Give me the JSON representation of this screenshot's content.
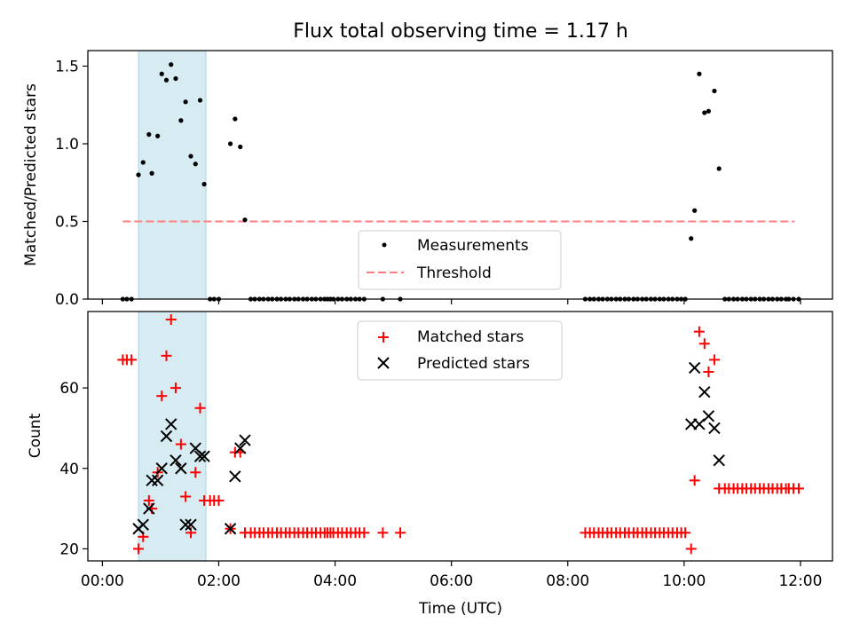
{
  "figure_title": "Flux total observing time = 1.17 h",
  "chart_data": [
    {
      "type": "scatter",
      "ylabel": "Matched/Predicted stars",
      "xlabel": "",
      "xlim": [
        -0.25,
        12.55
      ],
      "ylim": [
        0,
        1.6
      ],
      "yticks": [
        0.0,
        0.5,
        1.0,
        1.5
      ],
      "ytick_labels": [
        "0.0",
        "0.5",
        "1.0",
        "1.5"
      ],
      "highlight_span": [
        0.62,
        1.78
      ],
      "threshold": {
        "label": "Threshold",
        "value": 0.5,
        "x_range": [
          0.35,
          11.9
        ],
        "color": "#ff7f7f"
      },
      "series": [
        {
          "name": "Measurements",
          "color": "#000000",
          "marker": "dot",
          "x": [
            0.35,
            0.42,
            0.5,
            0.62,
            0.7,
            0.8,
            0.85,
            0.95,
            1.02,
            1.1,
            1.18,
            1.26,
            1.35,
            1.43,
            1.52,
            1.6,
            1.68,
            1.75,
            1.85,
            1.92,
            2.0,
            2.2,
            2.28,
            2.37,
            2.45,
            2.55,
            2.62,
            2.7,
            2.77,
            2.85,
            2.92,
            3.0,
            3.07,
            3.15,
            3.22,
            3.3,
            3.37,
            3.45,
            3.52,
            3.6,
            3.67,
            3.75,
            3.82,
            3.87,
            3.92,
            3.97,
            4.05,
            4.12,
            4.2,
            4.27,
            4.35,
            4.42,
            4.5,
            4.82,
            5.12,
            8.3,
            8.38,
            8.45,
            8.53,
            8.6,
            8.68,
            8.75,
            8.83,
            8.9,
            8.98,
            9.05,
            9.13,
            9.2,
            9.28,
            9.35,
            9.43,
            9.5,
            9.58,
            9.65,
            9.73,
            9.8,
            9.88,
            9.95,
            10.02,
            10.12,
            10.18,
            10.26,
            10.35,
            10.42,
            10.52,
            10.6,
            10.7,
            10.77,
            10.85,
            10.92,
            11.0,
            11.07,
            11.15,
            11.22,
            11.3,
            11.37,
            11.45,
            11.52,
            11.6,
            11.67,
            11.75,
            11.8,
            11.88,
            11.97
          ],
          "y": [
            0,
            0,
            0,
            0.8,
            0.88,
            1.06,
            0.81,
            1.05,
            1.45,
            1.41,
            1.51,
            1.42,
            1.15,
            1.27,
            0.92,
            0.87,
            1.28,
            0.74,
            0,
            0,
            0,
            1.0,
            1.16,
            0.98,
            0.51,
            0,
            0,
            0,
            0,
            0,
            0,
            0,
            0,
            0,
            0,
            0,
            0,
            0,
            0,
            0,
            0,
            0,
            0,
            0,
            0,
            0,
            0,
            0,
            0,
            0,
            0,
            0,
            0,
            0,
            0,
            0,
            0,
            0,
            0,
            0,
            0,
            0,
            0,
            0,
            0,
            0,
            0,
            0,
            0,
            0,
            0,
            0,
            0,
            0,
            0,
            0,
            0,
            0,
            0,
            0.39,
            0.57,
            1.45,
            1.2,
            1.21,
            1.34,
            0.84,
            0,
            0,
            0,
            0,
            0,
            0,
            0,
            0,
            0,
            0,
            0,
            0,
            0,
            0,
            0,
            0,
            0,
            0
          ]
        }
      ],
      "legend": {
        "location": "lower-center",
        "entries": [
          "Measurements",
          "Threshold"
        ]
      }
    },
    {
      "type": "scatter",
      "ylabel": "Count",
      "xlabel": "Time (UTC)",
      "xlim": [
        -0.25,
        12.55
      ],
      "ylim": [
        17,
        79
      ],
      "yticks": [
        20,
        40,
        60
      ],
      "ytick_labels": [
        "20",
        "40",
        "60"
      ],
      "xticks": [
        0,
        2,
        4,
        6,
        8,
        10,
        12
      ],
      "xtick_labels": [
        "00:00",
        "02:00",
        "04:00",
        "06:00",
        "08:00",
        "10:00",
        "12:00"
      ],
      "highlight_span": [
        0.62,
        1.78
      ],
      "series": [
        {
          "name": "Matched stars",
          "color": "#ff0000",
          "marker": "plus",
          "x": [
            0.35,
            0.42,
            0.5,
            0.62,
            0.7,
            0.8,
            0.85,
            0.95,
            1.02,
            1.1,
            1.18,
            1.26,
            1.35,
            1.43,
            1.52,
            1.6,
            1.68,
            1.75,
            1.85,
            1.92,
            2.0,
            2.2,
            2.28,
            2.37,
            2.45,
            2.55,
            2.62,
            2.7,
            2.77,
            2.85,
            2.92,
            3.0,
            3.07,
            3.15,
            3.22,
            3.3,
            3.37,
            3.45,
            3.52,
            3.6,
            3.67,
            3.75,
            3.82,
            3.87,
            3.92,
            3.97,
            4.05,
            4.12,
            4.2,
            4.27,
            4.35,
            4.42,
            4.5,
            4.82,
            5.12,
            8.3,
            8.38,
            8.45,
            8.53,
            8.6,
            8.68,
            8.75,
            8.83,
            8.9,
            8.98,
            9.05,
            9.13,
            9.2,
            9.28,
            9.35,
            9.43,
            9.5,
            9.58,
            9.65,
            9.73,
            9.8,
            9.88,
            9.95,
            10.02,
            10.12,
            10.18,
            10.26,
            10.35,
            10.42,
            10.52,
            10.6,
            10.7,
            10.77,
            10.85,
            10.92,
            11.0,
            11.07,
            11.15,
            11.22,
            11.3,
            11.37,
            11.45,
            11.52,
            11.6,
            11.67,
            11.75,
            11.8,
            11.88,
            11.97
          ],
          "y": [
            67,
            67,
            67,
            20,
            23,
            32,
            30,
            39,
            58,
            68,
            77,
            60,
            46,
            33,
            24,
            39,
            55,
            32,
            32,
            32,
            32,
            25,
            44,
            44,
            24,
            24,
            24,
            24,
            24,
            24,
            24,
            24,
            24,
            24,
            24,
            24,
            24,
            24,
            24,
            24,
            24,
            24,
            24,
            24,
            24,
            24,
            24,
            24,
            24,
            24,
            24,
            24,
            24,
            24,
            24,
            24,
            24,
            24,
            24,
            24,
            24,
            24,
            24,
            24,
            24,
            24,
            24,
            24,
            24,
            24,
            24,
            24,
            24,
            24,
            24,
            24,
            24,
            24,
            24,
            20,
            37,
            74,
            71,
            64,
            67,
            35,
            35,
            35,
            35,
            35,
            35,
            35,
            35,
            35,
            35,
            35,
            35,
            35,
            35,
            35,
            35,
            35,
            35,
            35
          ]
        },
        {
          "name": "Predicted stars",
          "color": "#000000",
          "marker": "cross",
          "x": [
            0.62,
            0.7,
            0.8,
            0.85,
            0.95,
            1.02,
            1.1,
            1.18,
            1.26,
            1.35,
            1.43,
            1.52,
            1.6,
            1.68,
            1.75,
            2.2,
            2.28,
            2.37,
            2.45,
            10.12,
            10.18,
            10.26,
            10.35,
            10.42,
            10.52,
            10.6
          ],
          "y": [
            25,
            26,
            30,
            37,
            37,
            40,
            48,
            51,
            42,
            40,
            26,
            26,
            45,
            43,
            43,
            25,
            38,
            45,
            47,
            51,
            65,
            51,
            59,
            53,
            50,
            42
          ]
        }
      ],
      "legend": {
        "location": "upper-center",
        "entries": [
          "Matched stars",
          "Predicted stars"
        ]
      }
    }
  ]
}
